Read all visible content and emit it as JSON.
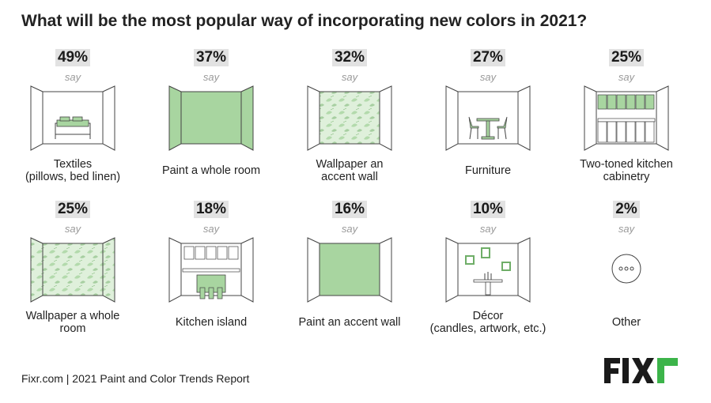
{
  "title": "What will be the most popular way of incorporating new colors in 2021?",
  "say_label": "say",
  "items": [
    {
      "pct": "49%",
      "label1": "Textiles",
      "label2": "(pillows, bed linen)"
    },
    {
      "pct": "37%",
      "label1": "Paint a whole room",
      "label2": ""
    },
    {
      "pct": "32%",
      "label1": "Wallpaper an",
      "label2": "accent wall"
    },
    {
      "pct": "27%",
      "label1": "Furniture",
      "label2": ""
    },
    {
      "pct": "25%",
      "label1": "Two-toned kitchen",
      "label2": "cabinetry"
    },
    {
      "pct": "25%",
      "label1": "Wallpaper a whole",
      "label2": "room"
    },
    {
      "pct": "18%",
      "label1": "Kitchen island",
      "label2": ""
    },
    {
      "pct": "16%",
      "label1": "Paint an accent wall",
      "label2": ""
    },
    {
      "pct": "10%",
      "label1": "Décor",
      "label2": "(candles, artwork, etc.)"
    },
    {
      "pct": "2%",
      "label1": "Other",
      "label2": ""
    }
  ],
  "chart_data": {
    "type": "table",
    "title": "What will be the most popular way of incorporating new colors in 2021?",
    "categories": [
      "Textiles (pillows, bed linen)",
      "Paint a whole room",
      "Wallpaper an accent wall",
      "Furniture",
      "Two-toned kitchen cabinetry",
      "Wallpaper a whole room",
      "Kitchen island",
      "Paint an accent wall",
      "Décor (candles, artwork, etc.)",
      "Other"
    ],
    "values": [
      49,
      37,
      32,
      27,
      25,
      25,
      18,
      16,
      10,
      2
    ],
    "unit": "%"
  },
  "footer": "Fixr.com | 2021 Paint and Color Trends Report",
  "logo": "FIXr",
  "colors": {
    "green": "#a8d5a0",
    "green_dark": "#6fae68",
    "outline": "#444444",
    "pct_bg": "#e2e2e2",
    "logo_green": "#3cb44a"
  }
}
